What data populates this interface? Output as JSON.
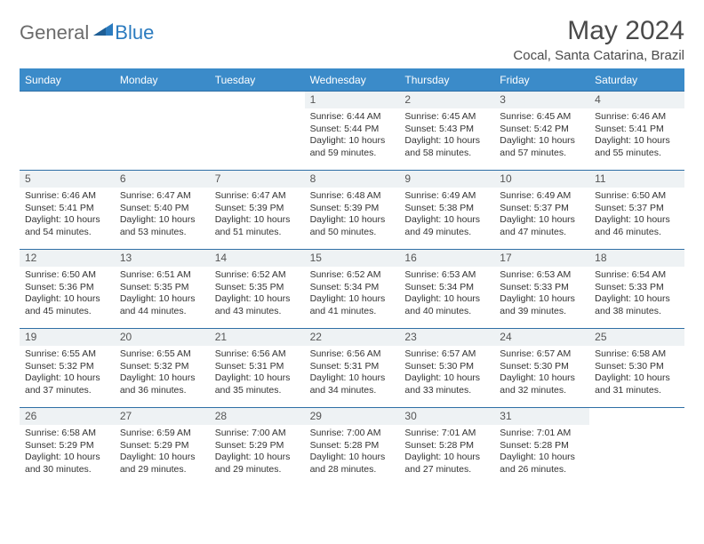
{
  "brand": {
    "part1": "General",
    "part2": "Blue"
  },
  "title": "May 2024",
  "location": "Cocal, Santa Catarina, Brazil",
  "colors": {
    "header_bg": "#3b8bc9",
    "header_text": "#ffffff",
    "day_num_bg": "#eef2f4",
    "rule": "#2f6fa5",
    "body_text": "#333333",
    "brand_gray": "#6b6b6b",
    "brand_blue": "#2b7bbf"
  },
  "weekdays": [
    "Sunday",
    "Monday",
    "Tuesday",
    "Wednesday",
    "Thursday",
    "Friday",
    "Saturday"
  ],
  "weeks": [
    [
      {
        "day": "",
        "sunrise": "",
        "sunset": "",
        "daylight1": "",
        "daylight2": ""
      },
      {
        "day": "",
        "sunrise": "",
        "sunset": "",
        "daylight1": "",
        "daylight2": ""
      },
      {
        "day": "",
        "sunrise": "",
        "sunset": "",
        "daylight1": "",
        "daylight2": ""
      },
      {
        "day": "1",
        "sunrise": "Sunrise: 6:44 AM",
        "sunset": "Sunset: 5:44 PM",
        "daylight1": "Daylight: 10 hours",
        "daylight2": "and 59 minutes."
      },
      {
        "day": "2",
        "sunrise": "Sunrise: 6:45 AM",
        "sunset": "Sunset: 5:43 PM",
        "daylight1": "Daylight: 10 hours",
        "daylight2": "and 58 minutes."
      },
      {
        "day": "3",
        "sunrise": "Sunrise: 6:45 AM",
        "sunset": "Sunset: 5:42 PM",
        "daylight1": "Daylight: 10 hours",
        "daylight2": "and 57 minutes."
      },
      {
        "day": "4",
        "sunrise": "Sunrise: 6:46 AM",
        "sunset": "Sunset: 5:41 PM",
        "daylight1": "Daylight: 10 hours",
        "daylight2": "and 55 minutes."
      }
    ],
    [
      {
        "day": "5",
        "sunrise": "Sunrise: 6:46 AM",
        "sunset": "Sunset: 5:41 PM",
        "daylight1": "Daylight: 10 hours",
        "daylight2": "and 54 minutes."
      },
      {
        "day": "6",
        "sunrise": "Sunrise: 6:47 AM",
        "sunset": "Sunset: 5:40 PM",
        "daylight1": "Daylight: 10 hours",
        "daylight2": "and 53 minutes."
      },
      {
        "day": "7",
        "sunrise": "Sunrise: 6:47 AM",
        "sunset": "Sunset: 5:39 PM",
        "daylight1": "Daylight: 10 hours",
        "daylight2": "and 51 minutes."
      },
      {
        "day": "8",
        "sunrise": "Sunrise: 6:48 AM",
        "sunset": "Sunset: 5:39 PM",
        "daylight1": "Daylight: 10 hours",
        "daylight2": "and 50 minutes."
      },
      {
        "day": "9",
        "sunrise": "Sunrise: 6:49 AM",
        "sunset": "Sunset: 5:38 PM",
        "daylight1": "Daylight: 10 hours",
        "daylight2": "and 49 minutes."
      },
      {
        "day": "10",
        "sunrise": "Sunrise: 6:49 AM",
        "sunset": "Sunset: 5:37 PM",
        "daylight1": "Daylight: 10 hours",
        "daylight2": "and 47 minutes."
      },
      {
        "day": "11",
        "sunrise": "Sunrise: 6:50 AM",
        "sunset": "Sunset: 5:37 PM",
        "daylight1": "Daylight: 10 hours",
        "daylight2": "and 46 minutes."
      }
    ],
    [
      {
        "day": "12",
        "sunrise": "Sunrise: 6:50 AM",
        "sunset": "Sunset: 5:36 PM",
        "daylight1": "Daylight: 10 hours",
        "daylight2": "and 45 minutes."
      },
      {
        "day": "13",
        "sunrise": "Sunrise: 6:51 AM",
        "sunset": "Sunset: 5:35 PM",
        "daylight1": "Daylight: 10 hours",
        "daylight2": "and 44 minutes."
      },
      {
        "day": "14",
        "sunrise": "Sunrise: 6:52 AM",
        "sunset": "Sunset: 5:35 PM",
        "daylight1": "Daylight: 10 hours",
        "daylight2": "and 43 minutes."
      },
      {
        "day": "15",
        "sunrise": "Sunrise: 6:52 AM",
        "sunset": "Sunset: 5:34 PM",
        "daylight1": "Daylight: 10 hours",
        "daylight2": "and 41 minutes."
      },
      {
        "day": "16",
        "sunrise": "Sunrise: 6:53 AM",
        "sunset": "Sunset: 5:34 PM",
        "daylight1": "Daylight: 10 hours",
        "daylight2": "and 40 minutes."
      },
      {
        "day": "17",
        "sunrise": "Sunrise: 6:53 AM",
        "sunset": "Sunset: 5:33 PM",
        "daylight1": "Daylight: 10 hours",
        "daylight2": "and 39 minutes."
      },
      {
        "day": "18",
        "sunrise": "Sunrise: 6:54 AM",
        "sunset": "Sunset: 5:33 PM",
        "daylight1": "Daylight: 10 hours",
        "daylight2": "and 38 minutes."
      }
    ],
    [
      {
        "day": "19",
        "sunrise": "Sunrise: 6:55 AM",
        "sunset": "Sunset: 5:32 PM",
        "daylight1": "Daylight: 10 hours",
        "daylight2": "and 37 minutes."
      },
      {
        "day": "20",
        "sunrise": "Sunrise: 6:55 AM",
        "sunset": "Sunset: 5:32 PM",
        "daylight1": "Daylight: 10 hours",
        "daylight2": "and 36 minutes."
      },
      {
        "day": "21",
        "sunrise": "Sunrise: 6:56 AM",
        "sunset": "Sunset: 5:31 PM",
        "daylight1": "Daylight: 10 hours",
        "daylight2": "and 35 minutes."
      },
      {
        "day": "22",
        "sunrise": "Sunrise: 6:56 AM",
        "sunset": "Sunset: 5:31 PM",
        "daylight1": "Daylight: 10 hours",
        "daylight2": "and 34 minutes."
      },
      {
        "day": "23",
        "sunrise": "Sunrise: 6:57 AM",
        "sunset": "Sunset: 5:30 PM",
        "daylight1": "Daylight: 10 hours",
        "daylight2": "and 33 minutes."
      },
      {
        "day": "24",
        "sunrise": "Sunrise: 6:57 AM",
        "sunset": "Sunset: 5:30 PM",
        "daylight1": "Daylight: 10 hours",
        "daylight2": "and 32 minutes."
      },
      {
        "day": "25",
        "sunrise": "Sunrise: 6:58 AM",
        "sunset": "Sunset: 5:30 PM",
        "daylight1": "Daylight: 10 hours",
        "daylight2": "and 31 minutes."
      }
    ],
    [
      {
        "day": "26",
        "sunrise": "Sunrise: 6:58 AM",
        "sunset": "Sunset: 5:29 PM",
        "daylight1": "Daylight: 10 hours",
        "daylight2": "and 30 minutes."
      },
      {
        "day": "27",
        "sunrise": "Sunrise: 6:59 AM",
        "sunset": "Sunset: 5:29 PM",
        "daylight1": "Daylight: 10 hours",
        "daylight2": "and 29 minutes."
      },
      {
        "day": "28",
        "sunrise": "Sunrise: 7:00 AM",
        "sunset": "Sunset: 5:29 PM",
        "daylight1": "Daylight: 10 hours",
        "daylight2": "and 29 minutes."
      },
      {
        "day": "29",
        "sunrise": "Sunrise: 7:00 AM",
        "sunset": "Sunset: 5:28 PM",
        "daylight1": "Daylight: 10 hours",
        "daylight2": "and 28 minutes."
      },
      {
        "day": "30",
        "sunrise": "Sunrise: 7:01 AM",
        "sunset": "Sunset: 5:28 PM",
        "daylight1": "Daylight: 10 hours",
        "daylight2": "and 27 minutes."
      },
      {
        "day": "31",
        "sunrise": "Sunrise: 7:01 AM",
        "sunset": "Sunset: 5:28 PM",
        "daylight1": "Daylight: 10 hours",
        "daylight2": "and 26 minutes."
      },
      {
        "day": "",
        "sunrise": "",
        "sunset": "",
        "daylight1": "",
        "daylight2": ""
      }
    ]
  ]
}
